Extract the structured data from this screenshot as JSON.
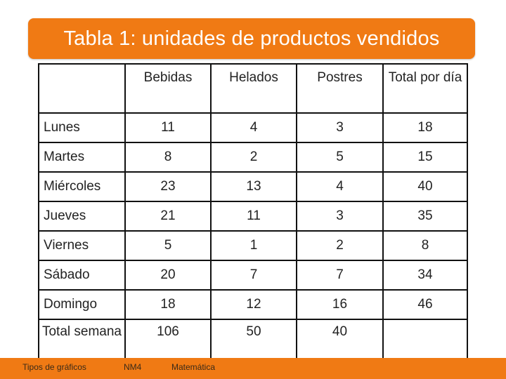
{
  "title": "Tabla 1: unidades de productos vendidos",
  "table": {
    "columns": [
      "Bebidas",
      "Helados",
      "Postres",
      "Total por día"
    ],
    "rows": [
      {
        "day": "Lunes",
        "values": [
          "11",
          "4",
          "3",
          "18"
        ]
      },
      {
        "day": "Martes",
        "values": [
          "8",
          "2",
          "5",
          "15"
        ]
      },
      {
        "day": "Miércoles",
        "values": [
          "23",
          "13",
          "4",
          "40"
        ]
      },
      {
        "day": "Jueves",
        "values": [
          "21",
          "11",
          "3",
          "35"
        ]
      },
      {
        "day": "Viernes",
        "values": [
          "5",
          "1",
          "2",
          "8"
        ]
      },
      {
        "day": "Sábado",
        "values": [
          "20",
          "7",
          "7",
          "34"
        ]
      },
      {
        "day": "Domingo",
        "values": [
          "18",
          "12",
          "16",
          "46"
        ]
      }
    ],
    "total_row": {
      "label": "Total semana",
      "values": [
        "106",
        "50",
        "40",
        ""
      ]
    }
  },
  "footer": {
    "left": "Tipos de gráficos",
    "middle": "NM4",
    "right": "Matemática"
  },
  "colors": {
    "accent": "#f07a14"
  }
}
